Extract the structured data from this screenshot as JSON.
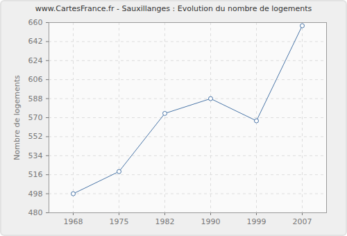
{
  "chart_data": {
    "type": "line",
    "title": "www.CartesFrance.fr - Sauxillanges : Evolution du nombre de logements",
    "y_label": "Nombre de logements",
    "categories": [
      "1968",
      "1975",
      "1982",
      "1990",
      "1999",
      "2007"
    ],
    "values": [
      498,
      519,
      574,
      588,
      567,
      657
    ],
    "color": "#4a76a8",
    "marker": "circle",
    "line_style": "solid",
    "ylim": [
      480,
      660
    ],
    "yticks": [
      480,
      498,
      516,
      534,
      552,
      570,
      588,
      606,
      624,
      642,
      660
    ],
    "grid": true
  }
}
